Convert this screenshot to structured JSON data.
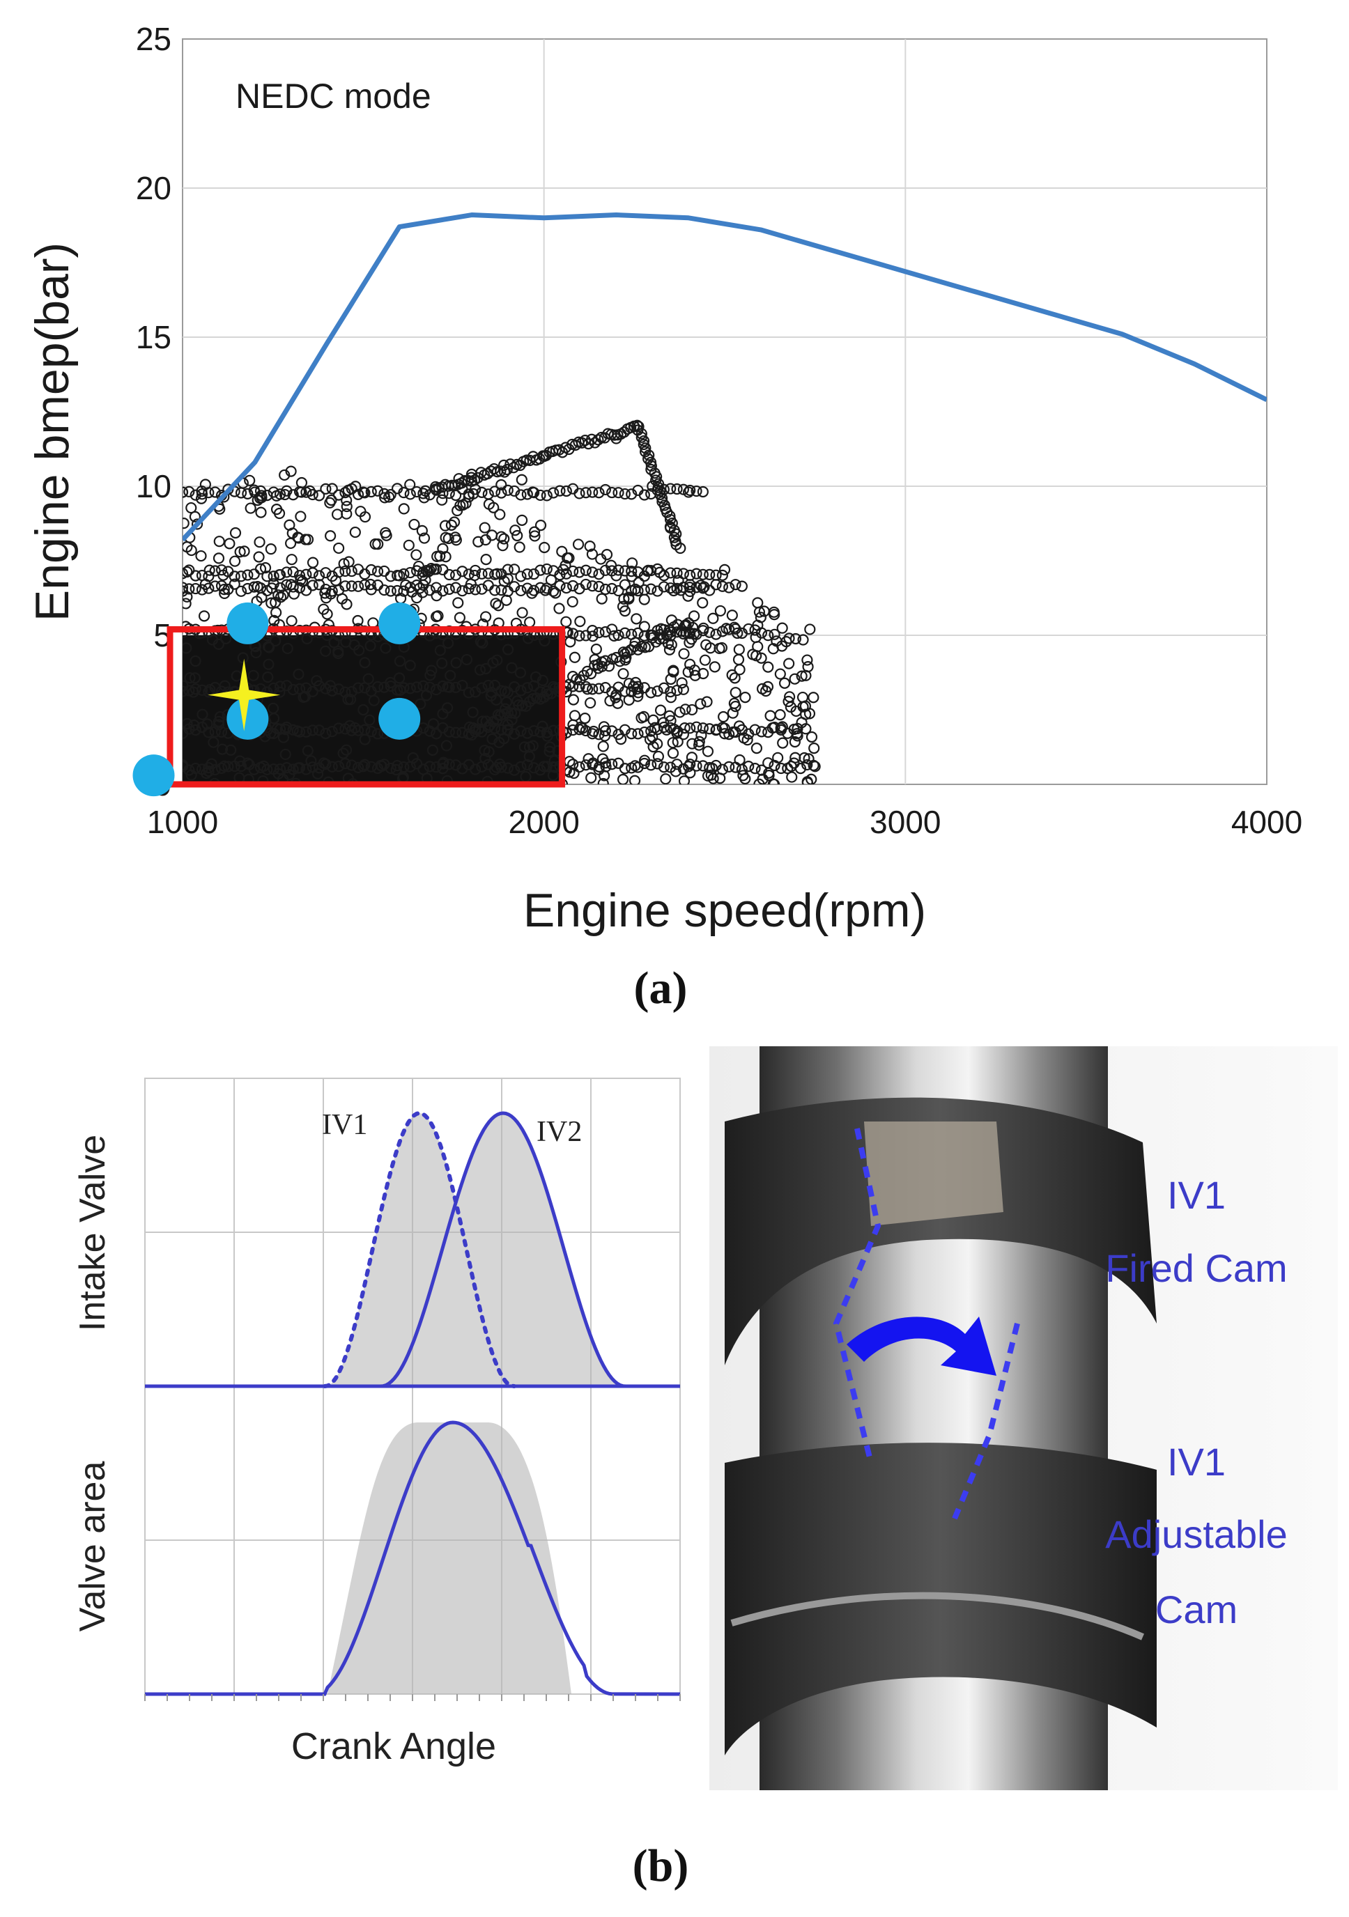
{
  "chart_data": [
    {
      "panel": "(a)",
      "type": "scatter",
      "annotation": "NEDC mode",
      "xlabel": "Engine speed(rpm)",
      "ylabel": "Engine bmep(bar)",
      "xlim": [
        1000,
        4000
      ],
      "ylim": [
        0,
        25
      ],
      "x_ticks": [
        "1000",
        "2000",
        "3000",
        "4000"
      ],
      "y_ticks": [
        "0",
        "5",
        "10",
        "15",
        "20",
        "25"
      ],
      "grid": true,
      "colors": {
        "full_load": "#3f7fc6",
        "points": "#1a1a1a",
        "region": "#ee1c1c",
        "marker": "#20aee6",
        "star": "#f5f020"
      },
      "series": [
        {
          "kind": "line",
          "x": [
            1000,
            1200,
            1400,
            1600,
            1800,
            2000,
            2200,
            2400,
            2600,
            2800,
            3000,
            3200,
            3400,
            3600,
            3800,
            4000
          ],
          "values": [
            8.2,
            10.8,
            14.8,
            18.7,
            19.1,
            19.0,
            19.1,
            19.0,
            18.6,
            17.9,
            17.2,
            16.5,
            15.8,
            15.1,
            14.1,
            12.9
          ]
        },
        {
          "kind": "scatter",
          "note_points": [
            [
              1000,
              9.8
            ],
            [
              1200,
              9.8
            ],
            [
              1300,
              10.5
            ],
            [
              1500,
              9.8
            ],
            [
              1700,
              9.9
            ],
            [
              1800,
              10.4
            ],
            [
              2000,
              11.0
            ],
            [
              2200,
              11.6
            ],
            [
              2250,
              12.0
            ],
            [
              2300,
              10.0
            ],
            [
              2350,
              8.6
            ],
            [
              2400,
              9.8
            ],
            [
              1000,
              6.6
            ],
            [
              1300,
              6.7
            ],
            [
              1600,
              7.0
            ],
            [
              1900,
              6.9
            ],
            [
              2200,
              7.0
            ],
            [
              2500,
              7.2
            ],
            [
              1100,
              4.7
            ],
            [
              1400,
              5.0
            ],
            [
              1700,
              5.2
            ],
            [
              2000,
              5.1
            ],
            [
              2300,
              5.0
            ],
            [
              2600,
              5.6
            ],
            [
              1100,
              2.0
            ],
            [
              1500,
              2.5
            ],
            [
              1900,
              2.0
            ],
            [
              2200,
              3.0
            ],
            [
              2500,
              1.7
            ],
            [
              2700,
              1.7
            ],
            [
              1000,
              0.6
            ],
            [
              1500,
              0.6
            ],
            [
              2000,
              0.6
            ],
            [
              2400,
              0.6
            ],
            [
              2750,
              0.6
            ]
          ],
          "dense_region": {
            "x": [
              1000,
              2050
            ],
            "y": [
              0,
              5.0
            ]
          }
        }
      ],
      "region_box": {
        "x": [
          1000,
          2050
        ],
        "y": [
          0,
          5.2
        ]
      },
      "operating_points": [
        {
          "x": 920,
          "y": 0.3
        },
        {
          "x": 1180,
          "y": 5.4
        },
        {
          "x": 1600,
          "y": 5.4
        },
        {
          "x": 1180,
          "y": 2.2
        },
        {
          "x": 1600,
          "y": 2.2
        }
      ],
      "star_point": {
        "x": 1170,
        "y": 3.0
      }
    },
    {
      "panel": "(b)",
      "type": "line",
      "ylabels": [
        "Intake Valve",
        "Valve area"
      ],
      "xlabel": "Crank Angle",
      "series_labels": [
        "IV1",
        "IV2"
      ],
      "colors": {
        "curve": "#3c3cc8",
        "band": "#b5b5b5"
      }
    }
  ],
  "photo": {
    "labels": [
      "IV1",
      "Fired Cam",
      "IV1",
      "Adjustable",
      "Cam"
    ]
  },
  "captions": {
    "a": "(a)",
    "b": "(b)"
  }
}
